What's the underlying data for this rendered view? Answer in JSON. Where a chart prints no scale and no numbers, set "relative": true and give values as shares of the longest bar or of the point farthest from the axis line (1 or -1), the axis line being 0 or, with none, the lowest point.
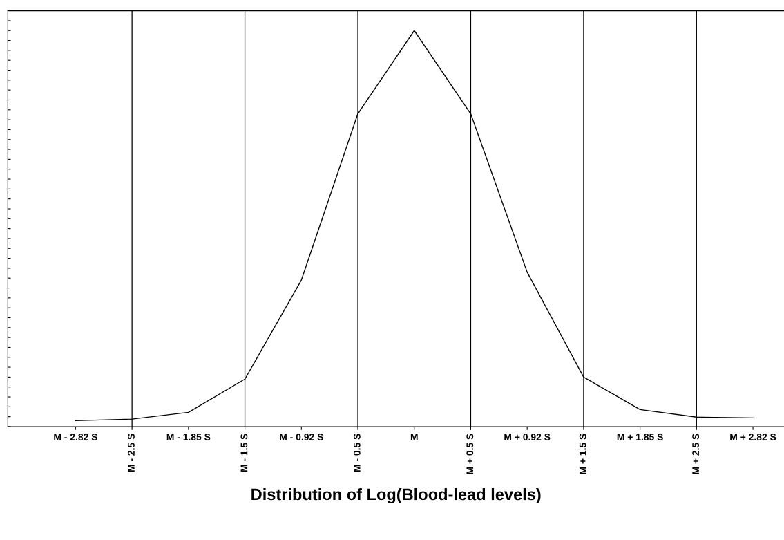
{
  "chart_data": {
    "type": "line",
    "relative": true,
    "xlabel": "Distribution of Log(Blood-lead levels)",
    "categories": [
      "M - 2.82 S",
      "M - 2.5 S",
      "M - 1.85 S",
      "M - 1.5 S",
      "M - 0.92 S",
      "M - 0.5 S",
      "M",
      "M + 0.5 S",
      "M + 0.92 S",
      "M + 1.5 S",
      "M + 1.85 S",
      "M + 2.5 S",
      "M + 2.82 S"
    ],
    "series": [
      {
        "color": "#000000",
        "values": [
          0.015,
          0.019,
          0.036,
          0.12,
          0.37,
          0.79,
          1.0,
          0.79,
          0.39,
          0.125,
          0.043,
          0.024,
          0.022
        ]
      }
    ],
    "ref_lines": [
      {
        "axis": "x",
        "value": "M - 2.5 S"
      },
      {
        "axis": "x",
        "value": "M - 1.5 S"
      },
      {
        "axis": "x",
        "value": "M - 0.5 S"
      },
      {
        "axis": "x",
        "value": "M + 0.5 S"
      },
      {
        "axis": "x",
        "value": "M + 1.5 S"
      },
      {
        "axis": "x",
        "value": "M + 2.5 S"
      }
    ],
    "tick_labels": "x",
    "grid": false,
    "legend": false,
    "marker": "none",
    "line_style": "solid"
  }
}
